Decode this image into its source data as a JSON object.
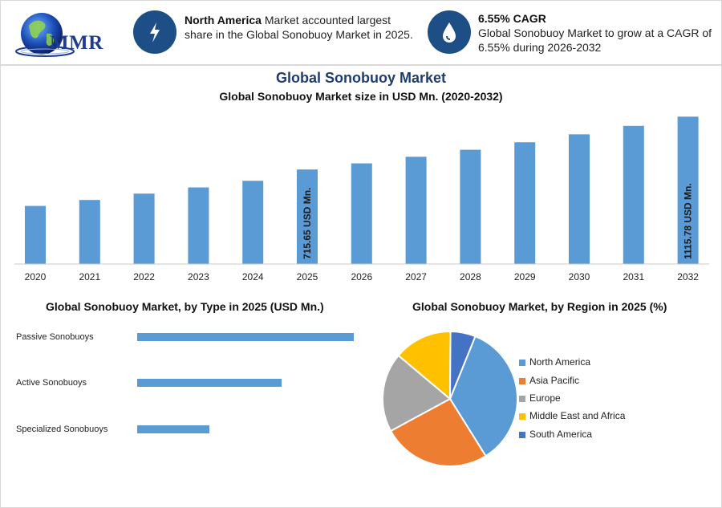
{
  "header": {
    "logo_text": "MMR",
    "stat1": {
      "bold": "North America",
      "text": " Market accounted largest share in the Global Sonobuoy Market in 2025."
    },
    "stat2": {
      "bold": "6.55% CAGR",
      "text": "Global Sonobuoy Market to grow at a CAGR of 6.55% during 2026-2032"
    }
  },
  "colors": {
    "accent": "#1e4e86",
    "bar": "#5b9bd5",
    "title": "#1f3d6e"
  },
  "chart_data": [
    {
      "type": "bar",
      "title": "Global Sonobuoy Market",
      "subtitle": "Global Sonobuoy Market size in USD Mn. (2020-2032)",
      "categories": [
        "2020",
        "2021",
        "2022",
        "2023",
        "2024",
        "2025",
        "2026",
        "2027",
        "2028",
        "2029",
        "2030",
        "2031",
        "2032"
      ],
      "values": [
        440,
        485,
        533,
        580,
        630,
        715.65,
        762,
        812,
        865,
        922,
        982,
        1046,
        1115.78
      ],
      "data_labels": {
        "2025": "715.65 USD Mn.",
        "2032": "1115.78 USD Mn."
      },
      "ylim": [
        0,
        1130
      ],
      "grid": false
    },
    {
      "type": "bar",
      "orientation": "horizontal",
      "title": "Global Sonobuoy Market, by Type in 2025 (USD Mn.)",
      "categories": [
        "Passive Sonobuoys",
        "Active Sonobuoys",
        "Specialized Sonobuoys"
      ],
      "values": [
        360,
        240,
        120
      ],
      "xlim": [
        0,
        360
      ]
    },
    {
      "type": "pie",
      "title": "Global Sonobuoy Market, by Region in 2025 (%)",
      "categories": [
        "North America",
        "Asia Pacific",
        "Europe",
        "Middle East and Africa",
        "South America"
      ],
      "values": [
        35,
        26,
        19,
        14,
        6
      ],
      "colors": [
        "#5b9bd5",
        "#ed7d31",
        "#a5a5a5",
        "#ffc000",
        "#4472c4"
      ],
      "legend": "right"
    }
  ]
}
